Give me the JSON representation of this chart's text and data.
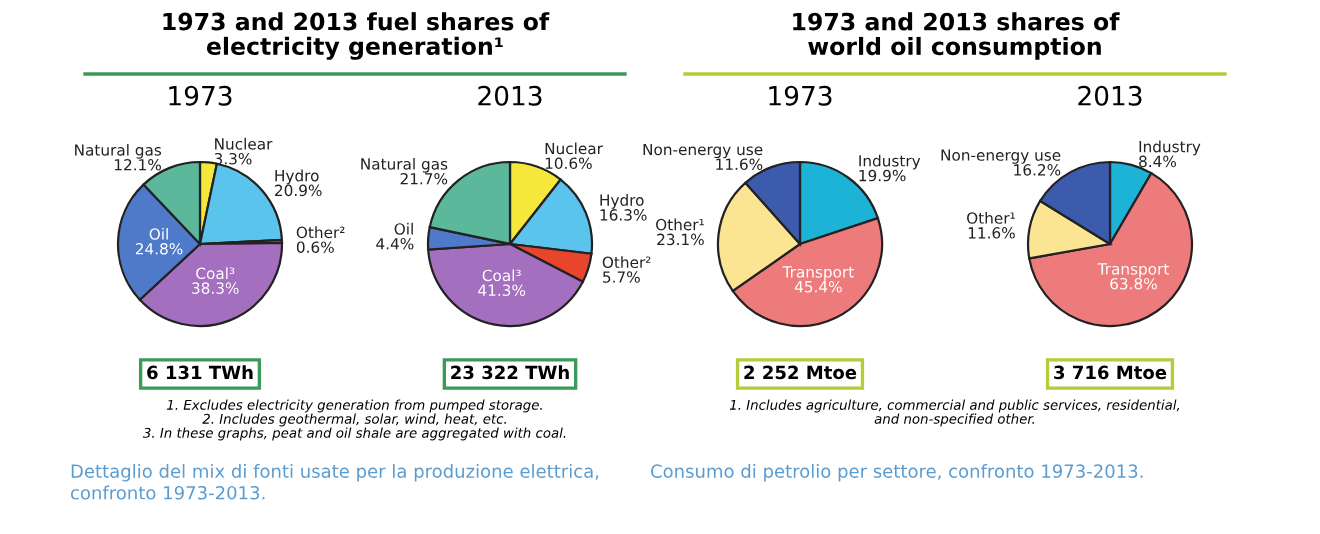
{
  "chart_data": [
    {
      "type": "pie",
      "title": "1973",
      "categories": [
        "Nuclear",
        "Hydro",
        "Other²",
        "Coal³",
        "Oil",
        "Natural gas"
      ],
      "values": [
        3.3,
        20.9,
        0.6,
        38.3,
        24.8,
        12.1
      ],
      "value_labels": [
        "3.3%",
        "20.9%",
        "0.6%",
        "38.3%",
        "24.8%",
        "12.1%"
      ],
      "colors": [
        "#f5e83a",
        "#5bc4ec",
        "#e8452c",
        "#a56fc0",
        "#4f7ac9",
        "#5bb89a"
      ],
      "annotations": [
        "6 131 TWh",
        "1973 and 2013 fuel shares of\nelectricity generation¹",
        "1. Excludes electricity generation from pumped storage.",
        "2. Includes geothermal, solar, wind, heat, etc.",
        "3. In these graphs, peat and oil shale are aggregated with coal.",
        "Dettaglio del mix di fonti usate per la produzione elettrica,\nconfronto 1973-2013."
      ]
    },
    {
      "type": "pie",
      "title": "2013",
      "categories": [
        "Nuclear",
        "Hydro",
        "Other²",
        "Coal³",
        "Oil",
        "Natural gas"
      ],
      "values": [
        10.6,
        16.3,
        5.7,
        41.3,
        4.4,
        21.7
      ],
      "value_labels": [
        "10.6%",
        "16.3%",
        "5.7%",
        "41.3%",
        "4.4%",
        "21.7%"
      ],
      "colors": [
        "#f5e83a",
        "#5bc4ec",
        "#e8452c",
        "#a56fc0",
        "#4f7ac9",
        "#5bb89a"
      ],
      "annotations": [
        "23 322 TWh"
      ]
    },
    {
      "type": "pie",
      "title": "1973",
      "categories": [
        "Industry",
        "Transport",
        "Other¹",
        "Non-energy use"
      ],
      "values": [
        19.9,
        45.4,
        23.1,
        11.6
      ],
      "value_labels": [
        "19.9%",
        "45.4%",
        "23.1%",
        "11.6%"
      ],
      "colors": [
        "#1db3d6",
        "#ee7b7b",
        "#fbe592",
        "#3c5bad"
      ],
      "annotations": [
        "2 252 Mtoe",
        "1973 and 2013 shares of\nworld oil consumption",
        "1. Includes agriculture, commercial and public services, residential,\nand non-specified other.",
        "Consumo di petrolio per settore, confronto 1973-2013."
      ]
    },
    {
      "type": "pie",
      "title": "2013",
      "categories": [
        "Industry",
        "Transport",
        "Other¹",
        "Non-energy use"
      ],
      "values": [
        8.4,
        63.8,
        11.6,
        16.2
      ],
      "value_labels": [
        "8.4%",
        "63.8%",
        "11.6%",
        "16.2%"
      ],
      "colors": [
        "#1db3d6",
        "#ee7b7b",
        "#fbe592",
        "#3c5bad"
      ],
      "annotations": [
        "3 716 Mtoe"
      ]
    }
  ]
}
